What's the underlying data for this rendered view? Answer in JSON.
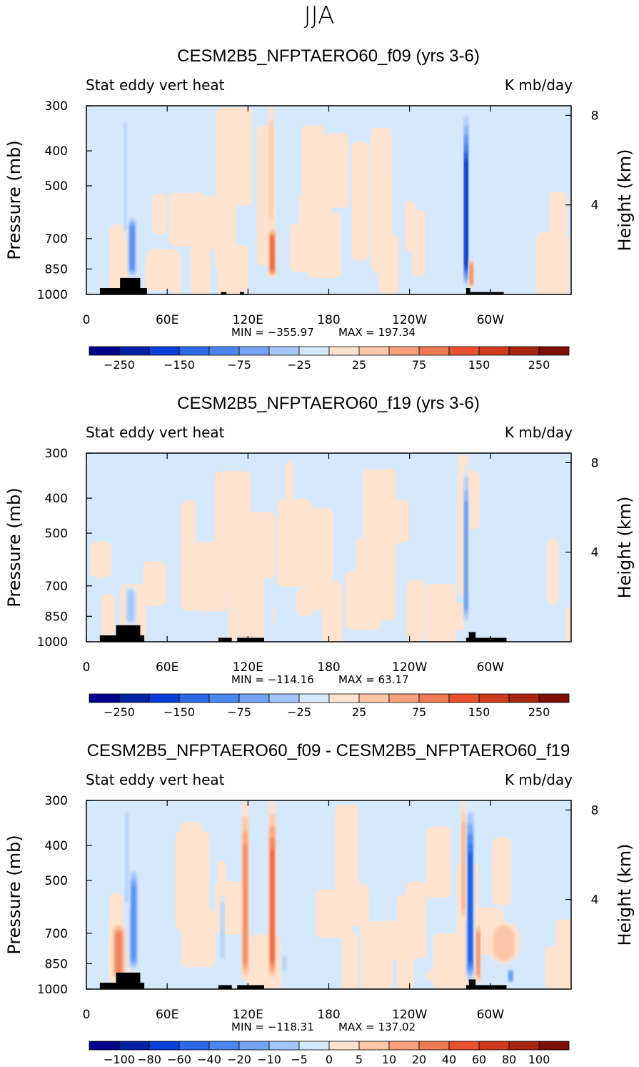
{
  "figure_title": "JJA",
  "colors": {
    "ocean_fill": "#d6e8fb",
    "neutral_pos": "#fde3cf",
    "topography": "#000000"
  },
  "chart_data": [
    {
      "type": "heatmap",
      "title": "CESM2B5_NFPTAERO60_f09 (yrs 3-6)",
      "left_label": "Stat eddy vert heat",
      "right_label": "K mb/day",
      "ylabel": "Pressure (mb)",
      "y2label": "Height (km)",
      "x_ticks": [
        "0",
        "60E",
        "120E",
        "180",
        "120W",
        "60W"
      ],
      "y_ticks": [
        "300",
        "400",
        "500",
        "700",
        "850",
        "1000"
      ],
      "y2_ticks": [
        "8",
        "4"
      ],
      "min": "MIN = −355.97",
      "max": "MAX = 197.34",
      "colorbar_ticks": [
        "−250",
        "−150",
        "−75",
        "−25",
        "25",
        "75",
        "150",
        "250"
      ],
      "colorbar_colors": [
        "#00008c",
        "#0023a6",
        "#0a3ed8",
        "#2c6ae6",
        "#4a86ef",
        "#75a3f4",
        "#a6c5f8",
        "#d6e8fb",
        "#fde3cf",
        "#fcc6a8",
        "#f6a07c",
        "#ee7b54",
        "#e8502e",
        "#cf3a1d",
        "#a82610",
        "#7d0d05"
      ],
      "xlim": [
        0,
        360
      ],
      "ylim": [
        1000,
        300
      ],
      "features": [
        {
          "kind": "neg",
          "lon": 34,
          "plo": 600,
          "phi": 900,
          "w": 3,
          "strength": 0.55
        },
        {
          "kind": "neg",
          "lon": 29,
          "plo": 300,
          "phi": 700,
          "w": 1,
          "strength": 0.3
        },
        {
          "kind": "pos",
          "lon": 138,
          "plo": 650,
          "phi": 900,
          "w": 2.5,
          "strength": 0.7
        },
        {
          "kind": "pos",
          "lon": 137,
          "plo": 300,
          "phi": 650,
          "w": 2,
          "strength": 0.25
        },
        {
          "kind": "neg",
          "lon": 282,
          "plo": 300,
          "phi": 960,
          "w": 1.5,
          "strength": 1.0
        },
        {
          "kind": "pos",
          "lon": 286,
          "plo": 800,
          "phi": 960,
          "w": 1.5,
          "strength": 0.6
        }
      ],
      "topography": [
        {
          "lon0": 10,
          "lon1": 45,
          "top": 960
        },
        {
          "lon0": 25,
          "lon1": 40,
          "top": 900
        },
        {
          "lon0": 100,
          "lon1": 104,
          "top": 985
        },
        {
          "lon0": 114,
          "lon1": 117,
          "top": 985
        },
        {
          "lon0": 282,
          "lon1": 310,
          "top": 985
        },
        {
          "lon0": 282,
          "lon1": 285,
          "top": 960
        }
      ]
    },
    {
      "type": "heatmap",
      "title": "CESM2B5_NFPTAERO60_f19 (yrs 3-6)",
      "left_label": "Stat eddy vert heat",
      "right_label": "K mb/day",
      "ylabel": "Pressure (mb)",
      "y2label": "Height (km)",
      "x_ticks": [
        "0",
        "60E",
        "120E",
        "180",
        "120W",
        "60W"
      ],
      "y_ticks": [
        "300",
        "400",
        "500",
        "700",
        "850",
        "1000"
      ],
      "y2_ticks": [
        "8",
        "4"
      ],
      "min": "MIN = −114.16",
      "max": "MAX =   63.17",
      "colorbar_ticks": [
        "−250",
        "−150",
        "−75",
        "−25",
        "25",
        "75",
        "150",
        "250"
      ],
      "colorbar_colors": [
        "#00008c",
        "#0023a6",
        "#0a3ed8",
        "#2c6ae6",
        "#4a86ef",
        "#75a3f4",
        "#a6c5f8",
        "#d6e8fb",
        "#fde3cf",
        "#fcc6a8",
        "#f6a07c",
        "#ee7b54",
        "#e8502e",
        "#cf3a1d",
        "#a82610",
        "#7d0d05"
      ],
      "xlim": [
        0,
        360
      ],
      "ylim": [
        1000,
        300
      ],
      "features": [
        {
          "kind": "neg",
          "lon": 33,
          "plo": 700,
          "phi": 900,
          "w": 4,
          "strength": 0.35
        },
        {
          "kind": "neg",
          "lon": 282,
          "plo": 320,
          "phi": 900,
          "w": 1.5,
          "strength": 0.6
        },
        {
          "kind": "pos",
          "lon": 140,
          "plo": 800,
          "phi": 880,
          "w": 1,
          "strength": 0.2
        }
      ],
      "topography": [
        {
          "lon0": 10,
          "lon1": 43,
          "top": 960
        },
        {
          "lon0": 22,
          "lon1": 40,
          "top": 900
        },
        {
          "lon0": 98,
          "lon1": 108,
          "top": 975
        },
        {
          "lon0": 112,
          "lon1": 132,
          "top": 975
        },
        {
          "lon0": 282,
          "lon1": 312,
          "top": 975
        },
        {
          "lon0": 284,
          "lon1": 289,
          "top": 940
        }
      ]
    },
    {
      "type": "heatmap",
      "title": "CESM2B5_NFPTAERO60_f09 - CESM2B5_NFPTAERO60_f19",
      "left_label": "Stat eddy vert heat",
      "right_label": "K mb/day",
      "ylabel": "Pressure (mb)",
      "y2label": "Height (km)",
      "x_ticks": [
        "0",
        "60E",
        "120E",
        "180",
        "120W",
        "60W"
      ],
      "y_ticks": [
        "300",
        "400",
        "500",
        "700",
        "850",
        "1000"
      ],
      "y2_ticks": [
        "8",
        "4"
      ],
      "min": "MIN = −118.31",
      "max": "MAX = 137.02",
      "colorbar_ticks": [
        "−100",
        "−80",
        "−60",
        "−40",
        "−20",
        "−10",
        "−5",
        "0",
        "5",
        "10",
        "20",
        "40",
        "60",
        "80",
        "100"
      ],
      "colorbar_colors": [
        "#00008c",
        "#0023a6",
        "#0a3ed8",
        "#2c6ae6",
        "#4a86ef",
        "#75a3f4",
        "#a6c5f8",
        "#d6e8fb",
        "#fde3cf",
        "#fcc6a8",
        "#f6a07c",
        "#ee7b54",
        "#e8502e",
        "#cf3a1d",
        "#a82610",
        "#7d0d05"
      ],
      "xlim": [
        0,
        360
      ],
      "ylim": [
        1000,
        300
      ],
      "features": [
        {
          "kind": "pos",
          "lon": 24,
          "plo": 650,
          "phi": 950,
          "w": 5,
          "strength": 0.55
        },
        {
          "kind": "neg",
          "lon": 35,
          "plo": 450,
          "phi": 900,
          "w": 3,
          "strength": 0.6
        },
        {
          "kind": "neg",
          "lon": 30,
          "plo": 300,
          "phi": 600,
          "w": 1.5,
          "strength": 0.3
        },
        {
          "kind": "pos",
          "lon": 118,
          "plo": 300,
          "phi": 950,
          "w": 2.5,
          "strength": 0.5
        },
        {
          "kind": "pos",
          "lon": 138,
          "plo": 300,
          "phi": 950,
          "w": 2.5,
          "strength": 0.75
        },
        {
          "kind": "neg",
          "lon": 101,
          "plo": 550,
          "phi": 850,
          "w": 1.5,
          "strength": 0.3
        },
        {
          "kind": "neg",
          "lon": 147,
          "plo": 800,
          "phi": 900,
          "w": 1.5,
          "strength": 0.3
        },
        {
          "kind": "neg",
          "lon": 285,
          "plo": 300,
          "phi": 960,
          "w": 2.5,
          "strength": 0.85
        },
        {
          "kind": "pos",
          "lon": 280,
          "plo": 300,
          "phi": 650,
          "w": 1.5,
          "strength": 0.45
        },
        {
          "kind": "pos",
          "lon": 291,
          "plo": 650,
          "phi": 960,
          "w": 1.5,
          "strength": 0.55
        },
        {
          "kind": "pos",
          "lon": 310,
          "plo": 650,
          "phi": 850,
          "w": 12,
          "strength": 0.3
        },
        {
          "kind": "neg",
          "lon": 315,
          "plo": 880,
          "phi": 960,
          "w": 2,
          "strength": 0.5
        },
        {
          "kind": "pos",
          "lon": 262,
          "plo": 880,
          "phi": 950,
          "w": 10,
          "strength": 0.2
        }
      ],
      "topography": [
        {
          "lon0": 10,
          "lon1": 43,
          "top": 960
        },
        {
          "lon0": 22,
          "lon1": 40,
          "top": 900
        },
        {
          "lon0": 98,
          "lon1": 108,
          "top": 975
        },
        {
          "lon0": 112,
          "lon1": 132,
          "top": 975
        },
        {
          "lon0": 282,
          "lon1": 312,
          "top": 975
        },
        {
          "lon0": 284,
          "lon1": 289,
          "top": 940
        }
      ]
    }
  ]
}
